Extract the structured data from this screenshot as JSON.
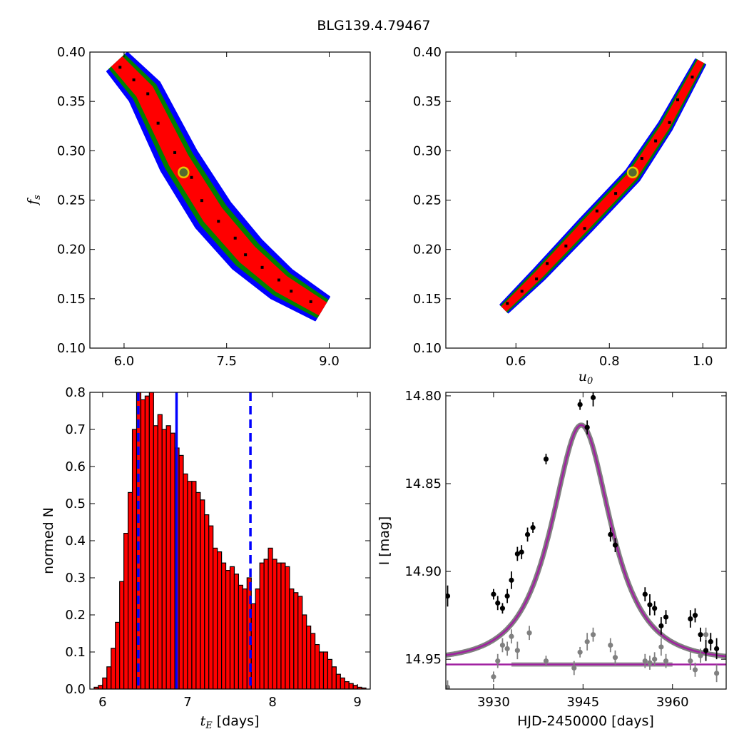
{
  "title": "BLG139.4.79467",
  "chart_data": [
    {
      "id": "fs-vs-tE",
      "type": "heatmap",
      "xlabel": "",
      "ylabel": "f",
      "ylabel_sub": "s",
      "xlim": [
        5.5,
        9.6
      ],
      "ylim": [
        0.1,
        0.4
      ],
      "xticks": [
        "6.0",
        "7.5",
        "9.0"
      ],
      "xtick_values": [
        6.0,
        7.5,
        9.0
      ],
      "yticks": [
        "0.10",
        "0.15",
        "0.20",
        "0.25",
        "0.30",
        "0.35",
        "0.40"
      ],
      "ytick_values": [
        0.1,
        0.15,
        0.2,
        0.25,
        0.3,
        0.35,
        0.4
      ],
      "contour_colors": {
        "outer": "#0000ff",
        "middle": "#008000",
        "inner": "#ff0000",
        "chain": "#000000"
      },
      "band_center": [
        [
          5.9,
          0.39
        ],
        [
          6.3,
          0.36
        ],
        [
          6.8,
          0.29
        ],
        [
          7.3,
          0.235
        ],
        [
          7.8,
          0.195
        ],
        [
          8.3,
          0.165
        ],
        [
          8.9,
          0.14
        ]
      ],
      "best_fit": {
        "x": 6.87,
        "y": 0.278
      }
    },
    {
      "id": "fs-vs-u0",
      "type": "heatmap",
      "xlabel": "u",
      "xlabel_sub": "0",
      "ylabel": "",
      "xlim": [
        0.45,
        1.05
      ],
      "ylim": [
        0.1,
        0.4
      ],
      "xticks": [
        "0.6",
        "0.8",
        "1.0"
      ],
      "xtick_values": [
        0.6,
        0.8,
        1.0
      ],
      "yticks": [
        "0.10",
        "0.15",
        "0.20",
        "0.25",
        "0.30",
        "0.35",
        "0.40"
      ],
      "ytick_values": [
        0.1,
        0.15,
        0.2,
        0.25,
        0.3,
        0.35,
        0.4
      ],
      "contour_colors": {
        "outer": "#0000ff",
        "middle": "#008000",
        "inner": "#ff0000",
        "chain": "#000000"
      },
      "band_center": [
        [
          0.575,
          0.14
        ],
        [
          0.65,
          0.175
        ],
        [
          0.75,
          0.225
        ],
        [
          0.85,
          0.275
        ],
        [
          0.92,
          0.325
        ],
        [
          0.995,
          0.39
        ]
      ],
      "best_fit": {
        "x": 0.85,
        "y": 0.278
      }
    },
    {
      "id": "tE-histogram",
      "type": "bar",
      "xlabel": "t",
      "xlabel_sub": "E",
      "xlabel_rest": " [days]",
      "ylabel": "normed N",
      "xlim": [
        5.85,
        9.15
      ],
      "ylim": [
        0.0,
        0.8
      ],
      "xticks": [
        "6",
        "7",
        "8",
        "9"
      ],
      "xtick_values": [
        6,
        7,
        8,
        9
      ],
      "yticks": [
        "0.0",
        "0.1",
        "0.2",
        "0.3",
        "0.4",
        "0.5",
        "0.6",
        "0.7",
        "0.8"
      ],
      "ytick_values": [
        0.0,
        0.1,
        0.2,
        0.3,
        0.4,
        0.5,
        0.6,
        0.7,
        0.8
      ],
      "bar_color": "#ff0000",
      "bin_start": 5.9,
      "bin_width": 0.05,
      "values": [
        0.005,
        0.01,
        0.03,
        0.06,
        0.11,
        0.18,
        0.29,
        0.42,
        0.53,
        0.7,
        0.8,
        0.78,
        0.79,
        0.8,
        0.71,
        0.74,
        0.7,
        0.71,
        0.69,
        0.65,
        0.63,
        0.58,
        0.56,
        0.56,
        0.53,
        0.51,
        0.47,
        0.44,
        0.38,
        0.37,
        0.34,
        0.32,
        0.33,
        0.31,
        0.28,
        0.27,
        0.3,
        0.23,
        0.27,
        0.34,
        0.35,
        0.38,
        0.35,
        0.34,
        0.34,
        0.33,
        0.27,
        0.26,
        0.25,
        0.2,
        0.17,
        0.15,
        0.12,
        0.1,
        0.1,
        0.08,
        0.06,
        0.04,
        0.03,
        0.02,
        0.015,
        0.01,
        0.005,
        0.003
      ],
      "median": 6.87,
      "lower": 6.42,
      "upper": 7.74,
      "line_color": "#0000ff"
    },
    {
      "id": "lightcurve",
      "type": "scatter",
      "xlabel": "HJD-2450000 [days]",
      "ylabel": "I [mag]",
      "xlim": [
        3922,
        3969
      ],
      "ylim": [
        14.967,
        14.798
      ],
      "xticks": [
        "3930",
        "3945",
        "3960"
      ],
      "xtick_values": [
        3930,
        3945,
        3960
      ],
      "yticks": [
        "14.80",
        "14.85",
        "14.90",
        "14.95"
      ],
      "ytick_values": [
        14.8,
        14.85,
        14.9,
        14.95
      ],
      "model": {
        "t0": 3944.7,
        "u0": 0.85,
        "tE": 6.87,
        "baseline": 14.951,
        "fs": 0.278
      },
      "model_color": "#a020a0",
      "model_band_color": "#808080",
      "residual_color": "#808080",
      "data_color": "#000000",
      "points": [
        [
          3922.3,
          14.914,
          0.006
        ],
        [
          3930.0,
          14.913,
          0.003
        ],
        [
          3930.7,
          14.918,
          0.004
        ],
        [
          3931.5,
          14.921,
          0.003
        ],
        [
          3932.3,
          14.914,
          0.004
        ],
        [
          3933.0,
          14.905,
          0.005
        ],
        [
          3934.0,
          14.89,
          0.004
        ],
        [
          3934.7,
          14.889,
          0.004
        ],
        [
          3935.7,
          14.879,
          0.004
        ],
        [
          3936.6,
          14.875,
          0.003
        ],
        [
          3938.8,
          14.836,
          0.003
        ],
        [
          3944.5,
          14.805,
          0.003
        ],
        [
          3945.7,
          14.818,
          0.004
        ],
        [
          3946.7,
          14.801,
          0.005
        ],
        [
          3949.6,
          14.879,
          0.004
        ],
        [
          3950.4,
          14.885,
          0.004
        ],
        [
          3955.4,
          14.913,
          0.004
        ],
        [
          3956.2,
          14.919,
          0.006
        ],
        [
          3957.0,
          14.921,
          0.004
        ],
        [
          3958.1,
          14.931,
          0.005
        ],
        [
          3958.9,
          14.926,
          0.004
        ],
        [
          3963.0,
          14.927,
          0.005
        ],
        [
          3963.8,
          14.925,
          0.004
        ],
        [
          3964.7,
          14.936,
          0.004
        ],
        [
          3965.6,
          14.945,
          0.006
        ],
        [
          3966.4,
          14.94,
          0.005
        ],
        [
          3967.4,
          14.944,
          0.006
        ]
      ],
      "residuals": [
        [
          3922.3,
          14.966,
          0.004
        ],
        [
          3930.0,
          14.96,
          0.003
        ],
        [
          3930.7,
          14.951,
          0.004
        ],
        [
          3931.5,
          14.942,
          0.004
        ],
        [
          3932.3,
          14.944,
          0.004
        ],
        [
          3933.0,
          14.937,
          0.004
        ],
        [
          3934.0,
          14.945,
          0.005
        ],
        [
          3936.0,
          14.935,
          0.004
        ],
        [
          3938.8,
          14.951,
          0.003
        ],
        [
          3943.5,
          14.955,
          0.004
        ],
        [
          3944.5,
          14.946,
          0.003
        ],
        [
          3945.7,
          14.94,
          0.005
        ],
        [
          3946.7,
          14.936,
          0.004
        ],
        [
          3949.6,
          14.942,
          0.004
        ],
        [
          3950.4,
          14.949,
          0.004
        ],
        [
          3955.4,
          14.951,
          0.004
        ],
        [
          3956.2,
          14.952,
          0.004
        ],
        [
          3957.0,
          14.95,
          0.004
        ],
        [
          3958.1,
          14.943,
          0.005
        ],
        [
          3958.9,
          14.951,
          0.004
        ],
        [
          3963.0,
          14.951,
          0.005
        ],
        [
          3963.8,
          14.956,
          0.004
        ],
        [
          3964.7,
          14.948,
          0.004
        ],
        [
          3965.6,
          14.936,
          0.004
        ],
        [
          3966.4,
          14.94,
          0.005
        ],
        [
          3967.4,
          14.958,
          0.005
        ]
      ]
    }
  ]
}
